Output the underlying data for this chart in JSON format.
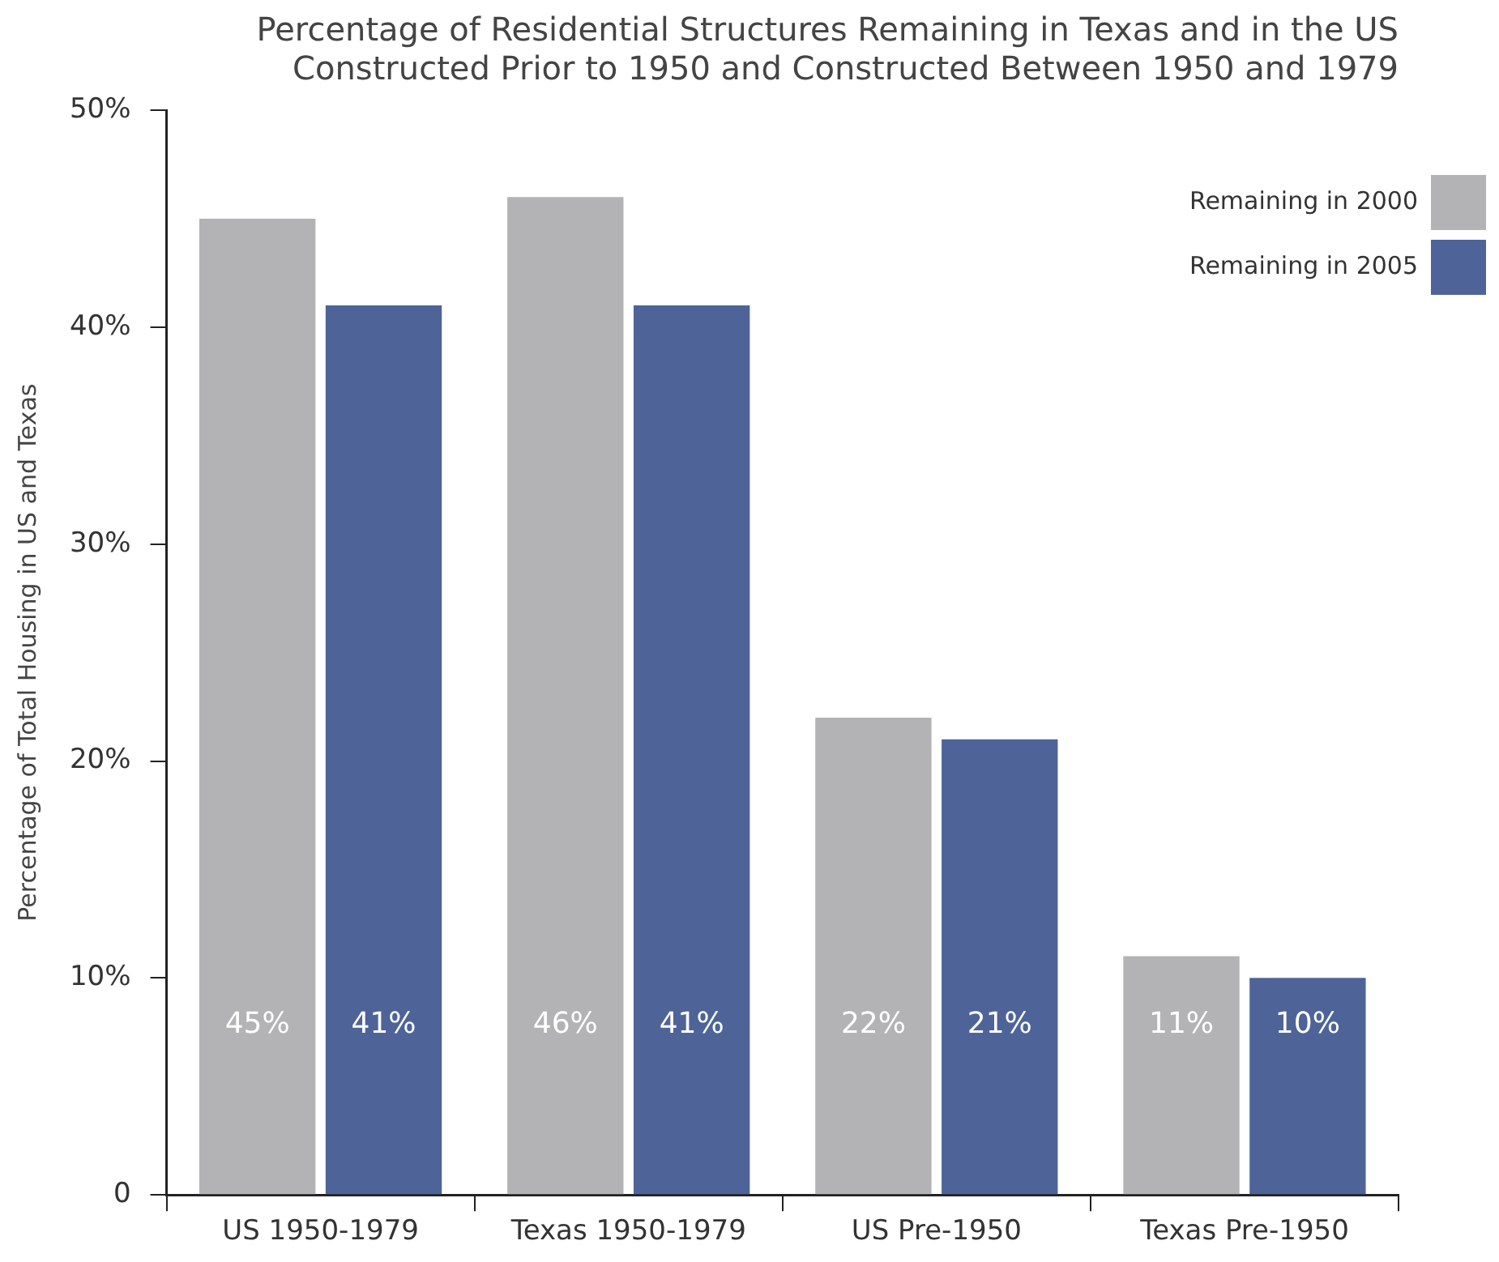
{
  "chart_data": {
    "type": "bar",
    "title": [
      "Percentage of Residential Structures Remaining in Texas and in the US",
      "Constructed Prior to 1950 and Constructed Between 1950 and 1979"
    ],
    "ylabel": "Percentage of Total Housing in US and Texas",
    "categories": [
      "US 1950-1979",
      "Texas 1950-1979",
      "US Pre-1950",
      "Texas Pre-1950"
    ],
    "series": [
      {
        "name": "Remaining in 2000",
        "color": "#b3b3b5",
        "values": [
          45,
          46,
          22,
          11
        ],
        "value_labels": [
          "45%",
          "46%",
          "22%",
          "11%"
        ]
      },
      {
        "name": "Remaining in 2005",
        "color": "#4e6498",
        "values": [
          41,
          41,
          21,
          10
        ],
        "value_labels": [
          "41%",
          "41%",
          "21%",
          "10%"
        ]
      }
    ],
    "ylim": [
      0,
      50
    ],
    "yticks": [
      {
        "value": 0,
        "label": "0"
      },
      {
        "value": 10,
        "label": "10%"
      },
      {
        "value": 20,
        "label": "20%"
      },
      {
        "value": 30,
        "label": "30%"
      },
      {
        "value": 40,
        "label": "40%"
      },
      {
        "value": 50,
        "label": "50%"
      }
    ],
    "grid": false,
    "legend": "top right"
  }
}
